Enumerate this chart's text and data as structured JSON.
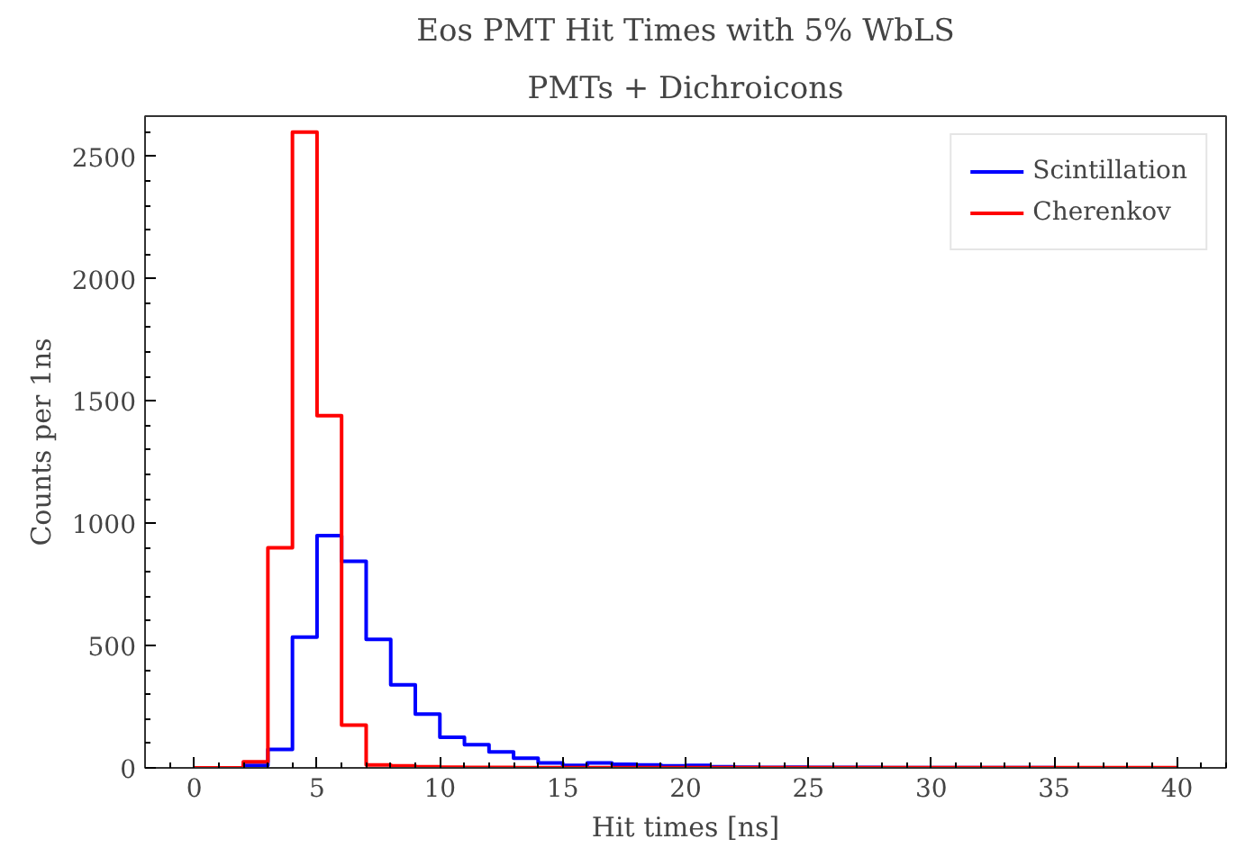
{
  "chart_data": {
    "type": "histogram",
    "title": "Eos PMT Hit Times with 5% WbLS",
    "subtitle": "PMTs + Dichroicons",
    "xlabel": "Hit times [ns]",
    "ylabel": "Counts per 1ns",
    "bins": [
      0,
      1,
      2,
      3,
      4,
      5,
      6,
      7,
      8,
      9,
      10,
      11,
      12,
      13,
      14,
      15,
      16,
      17,
      18,
      19,
      20,
      21,
      22,
      23,
      24,
      25,
      26,
      27,
      28,
      29,
      30,
      31,
      32,
      33,
      34,
      35,
      36,
      37,
      38,
      39,
      40
    ],
    "series": [
      {
        "name": "Scintillation",
        "color": "#0000ff",
        "values": [
          0,
          0,
          10,
          75,
          535,
          950,
          845,
          525,
          340,
          220,
          125,
          95,
          65,
          40,
          20,
          10,
          20,
          15,
          12,
          8,
          10,
          5,
          3,
          2,
          3,
          2,
          2,
          2,
          1,
          1,
          1,
          1,
          1,
          1,
          1,
          0,
          0,
          0,
          0,
          0
        ]
      },
      {
        "name": "Cherenkov",
        "color": "#ff0000",
        "values": [
          0,
          0,
          25,
          900,
          2600,
          1440,
          175,
          12,
          8,
          5,
          3,
          2,
          2,
          1,
          1,
          1,
          1,
          1,
          1,
          1,
          1,
          1,
          1,
          1,
          1,
          1,
          1,
          1,
          1,
          1,
          1,
          1,
          1,
          1,
          1,
          1,
          1,
          1,
          1,
          1
        ]
      }
    ],
    "xlim": [
      -2,
      42
    ],
    "ylim": [
      0,
      2665
    ],
    "xticks": [
      0,
      5,
      10,
      15,
      20,
      25,
      30,
      35,
      40
    ],
    "yticks": [
      0,
      500,
      1000,
      1500,
      2000,
      2500
    ],
    "legend": "top right",
    "grid": false
  }
}
